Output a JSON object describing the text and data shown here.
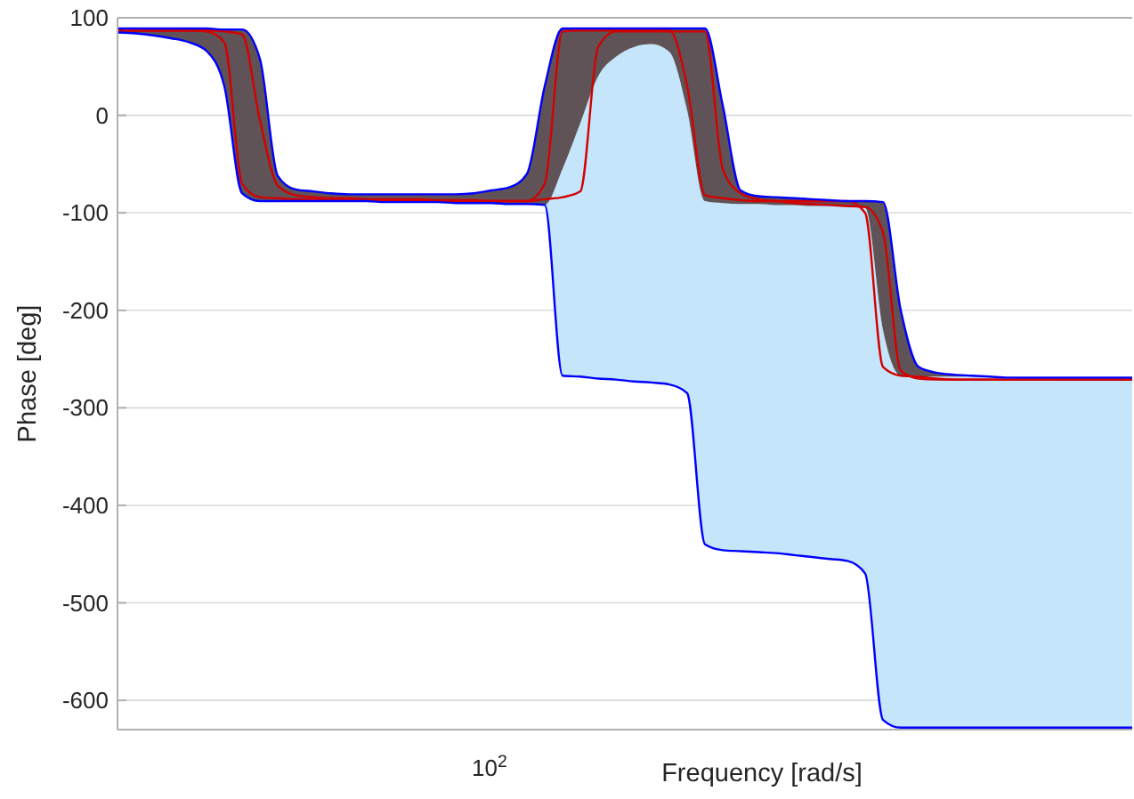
{
  "chart_data": {
    "type": "line",
    "xlabel": "Frequency [rad/s]",
    "ylabel": "Phase [deg]",
    "grid": "y",
    "marker": "none",
    "line_style": "solid",
    "annotations": [
      "10$^{2}$"
    ],
    "ylim": [
      -630,
      100
    ],
    "yticks": [
      -600,
      -500,
      -400,
      -300,
      -200,
      -100,
      0,
      100
    ],
    "categories": [
      null,
      null,
      null,
      null,
      null,
      null,
      null,
      null,
      null,
      null,
      null,
      null,
      null,
      null,
      null,
      null,
      null,
      null,
      null,
      null,
      null,
      null,
      null,
      null,
      null,
      null,
      null,
      null,
      null,
      null,
      null,
      null,
      null,
      null,
      null,
      null,
      null,
      null,
      null,
      null,
      null,
      null,
      null,
      null,
      null,
      null,
      null,
      null,
      null,
      null,
      null,
      null,
      null,
      null,
      null,
      null,
      null,
      null
    ],
    "series": [
      {
        "color": "#0000ff",
        "values": [
          85,
          84,
          82,
          79,
          75,
          66,
          30,
          -80,
          -88,
          -88,
          -88,
          -88,
          -88,
          -88,
          -88,
          -89,
          -89,
          -89,
          -89,
          -90,
          -90,
          -90,
          -91,
          -91,
          -92,
          -267,
          -268,
          -270,
          -271,
          -273,
          -274,
          -276,
          -285,
          -440,
          -446,
          -447,
          -448,
          -449,
          -451,
          -453,
          -455,
          -457,
          -470,
          -620,
          -628,
          -628,
          -628,
          -628,
          -628,
          -628,
          -628,
          -628,
          -628,
          -628,
          -628,
          -628,
          -628,
          -628
        ],
        "lower": [
          85,
          84,
          82,
          79,
          75,
          66,
          30,
          -80,
          -88,
          -88,
          -88,
          -88,
          -88,
          -88,
          -88,
          -89,
          -89,
          -89,
          -89,
          -90,
          -90,
          -90,
          -91,
          -91,
          -92,
          -267,
          -268,
          -270,
          -271,
          -273,
          -274,
          -276,
          -285,
          -440,
          -446,
          -447,
          -448,
          -449,
          -451,
          -453,
          -455,
          -457,
          -470,
          -620,
          -628,
          -628,
          -628,
          -628,
          -628,
          -628,
          -628,
          -628,
          -628,
          -628,
          -628,
          -628,
          -628,
          -628
        ],
        "upper": [
          85,
          84,
          82,
          79,
          75,
          66,
          30,
          -80,
          -88,
          -88,
          -88,
          -88,
          -88,
          -88,
          -88,
          -89,
          -89,
          -89,
          -89,
          -90,
          -90,
          -90,
          -91,
          -91,
          -92,
          -55,
          -8,
          40,
          60,
          70,
          73,
          65,
          5,
          -88,
          -90,
          -91,
          -91,
          -92,
          -92,
          -93,
          -93,
          -94,
          -95,
          -220,
          -267,
          -268,
          -268,
          -268,
          -268,
          -268,
          -269,
          -271,
          -271,
          -272,
          -272,
          -272,
          -272,
          -272
        ]
      },
      {
        "color": "#0000ff",
        "values": [
          89,
          89,
          89,
          89,
          89,
          89,
          88,
          88,
          58,
          -62,
          -76,
          -78,
          -80,
          -81,
          -81,
          -81,
          -81,
          -81,
          -81,
          -81,
          -80,
          -77,
          -74,
          -60,
          30,
          89,
          89,
          89,
          89,
          89,
          89,
          89,
          89,
          89,
          10,
          -77,
          -83,
          -84,
          -85,
          -86,
          -87,
          -88,
          -88,
          -89,
          -200,
          -258,
          -264,
          -266,
          -267,
          -268,
          -269,
          -269,
          -269,
          -269,
          -269,
          -269,
          -269,
          -269
        ],
        "lower": [
          85,
          84,
          82,
          79,
          75,
          66,
          30,
          -80,
          -88,
          -88,
          -88,
          -88,
          -88,
          -88,
          -88,
          -89,
          -89,
          -89,
          -89,
          -90,
          -90,
          -90,
          -91,
          -91,
          -92,
          -55,
          -8,
          40,
          60,
          70,
          73,
          65,
          5,
          -88,
          -90,
          -91,
          -91,
          -92,
          -92,
          -93,
          -93,
          -94,
          -95,
          -220,
          -267,
          -268,
          -268,
          -268,
          -268,
          -268,
          -269,
          -271,
          -271,
          -272,
          -272,
          -272,
          -272,
          -272
        ],
        "upper": [
          89,
          89,
          89,
          89,
          89,
          89,
          88,
          88,
          58,
          -62,
          -76,
          -78,
          -80,
          -81,
          -81,
          -81,
          -81,
          -81,
          -81,
          -81,
          -80,
          -77,
          -74,
          -60,
          30,
          89,
          89,
          89,
          89,
          89,
          89,
          89,
          89,
          89,
          10,
          -77,
          -83,
          -84,
          -85,
          -86,
          -87,
          -88,
          -88,
          -89,
          -200,
          -258,
          -264,
          -266,
          -267,
          -268,
          -269,
          -269,
          -269,
          -269,
          -269,
          -269,
          -269,
          -269
        ]
      },
      {
        "color": "#d40000",
        "values": [
          87,
          87,
          87,
          87,
          87,
          86,
          75,
          -70,
          -84,
          -85,
          -86,
          -86,
          -87,
          -87,
          -87,
          -87,
          -87,
          -88,
          -88,
          -88,
          -88,
          -88,
          -88,
          -88,
          -70,
          86,
          87,
          87,
          87,
          87,
          87,
          87,
          30,
          -82,
          -85,
          -87,
          -88,
          -88,
          -88,
          -88,
          -88,
          -88,
          -100,
          -258,
          -267,
          -268,
          -270,
          -271,
          -271,
          -271,
          -271,
          -271,
          -271,
          -271,
          -271,
          -271,
          -271,
          -271
        ]
      },
      {
        "color": "#d40000",
        "values": [
          87,
          87,
          87,
          87,
          87,
          87,
          86,
          83,
          -5,
          -72,
          -82,
          -84,
          -85,
          -85,
          -86,
          -86,
          -86,
          -86,
          -87,
          -87,
          -87,
          -88,
          -88,
          -88,
          -86,
          -84,
          -78,
          70,
          86,
          86,
          86,
          86,
          86,
          86,
          -55,
          -80,
          -86,
          -88,
          -90,
          -91,
          -92,
          -93,
          -94,
          -120,
          -262,
          -270,
          -271,
          -271,
          -271,
          -271,
          -271,
          -271,
          -271,
          -271,
          -271,
          -271,
          -271,
          -271
        ]
      }
    ]
  }
}
